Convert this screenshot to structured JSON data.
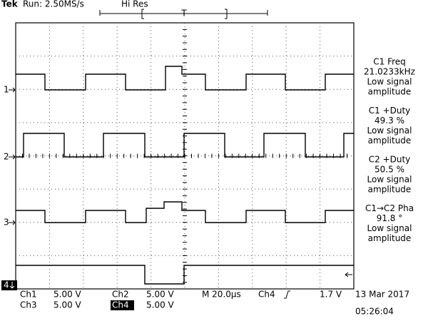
{
  "header": {
    "brand": "Tek",
    "status": "Run: 2.50MS/s",
    "mode": "Hi Res",
    "trigger_position": "T"
  },
  "channel_markers": [
    "1",
    "2",
    "3",
    "4"
  ],
  "measurements": [
    {
      "label": "C1 Freq",
      "value": "21.0233kHz",
      "note": [
        "Low signal",
        "amplitude"
      ]
    },
    {
      "label": "C1 +Duty",
      "value": "49.3 %",
      "note": [
        "Low signal",
        "amplitude"
      ]
    },
    {
      "label": "C2 +Duty",
      "value": "50.5 %",
      "note": [
        "Low signal",
        "amplitude"
      ]
    },
    {
      "label": "C1→C2 Pha",
      "value": "91.8 °",
      "note": [
        "Low signal",
        "amplitude"
      ]
    }
  ],
  "footer": {
    "channels": [
      {
        "name": "Ch1",
        "scale": "5.00 V"
      },
      {
        "name": "Ch2",
        "scale": "5.00 V"
      },
      {
        "name": "Ch3",
        "scale": "5.00 V"
      },
      {
        "name": "Ch4",
        "scale": "5.00 V"
      }
    ],
    "timebase": "M 20.0µs",
    "trigger_source": "Ch4",
    "trigger_level": "1.7 V",
    "date": "13 Mar 2017",
    "time": "05:26:04"
  }
}
